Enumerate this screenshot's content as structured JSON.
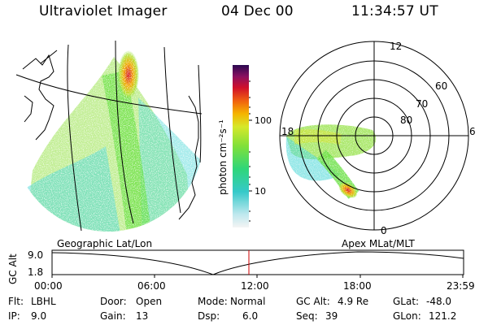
{
  "header": {
    "instrument": "Ultraviolet Imager",
    "date": "04 Dec 00",
    "time": "11:34:57 UT"
  },
  "colorbar": {
    "unit_label": "photon cm⁻²s⁻¹",
    "tick_100": "100",
    "tick_10": "10"
  },
  "polar": {
    "mlt_top": "12",
    "mlt_left": "18",
    "mlt_right": "6",
    "mlt_bottom": "0",
    "lat_60": "60",
    "lat_70": "70",
    "lat_80": "80"
  },
  "timeline": {
    "left_label": "Geographic Lat/Lon",
    "right_label": "Apex MLat/MLT",
    "axis_title": "GC Alt",
    "y_top": "9.0",
    "y_bottom": "1.8",
    "ticks": [
      "00:00",
      "06:00",
      "12:00",
      "18:00",
      "23:59"
    ]
  },
  "info": {
    "row1": [
      {
        "key": "Flt:",
        "value": "LBHL"
      },
      {
        "key": "Door:",
        "value": "Open"
      },
      {
        "key": "Mode:",
        "value": "Normal"
      },
      {
        "key": "GC Alt:",
        "value": "4.9 Re"
      },
      {
        "key": "GLat:",
        "value": "-48.0"
      }
    ],
    "row2": [
      {
        "key": "IP:",
        "value": "9.0"
      },
      {
        "key": "Gain:",
        "value": "13"
      },
      {
        "key": "Dsp:",
        "value": "6.0"
      },
      {
        "key": "Seq:",
        "value": "39"
      },
      {
        "key": "GLon:",
        "value": "121.2"
      }
    ]
  },
  "colors": {
    "cursor": "#cc0000",
    "aurora_low": "#49d7d7",
    "aurora_mid": "#8ee03a",
    "aurora_high": "#f2a800",
    "aurora_peak": "#d6142a"
  }
}
